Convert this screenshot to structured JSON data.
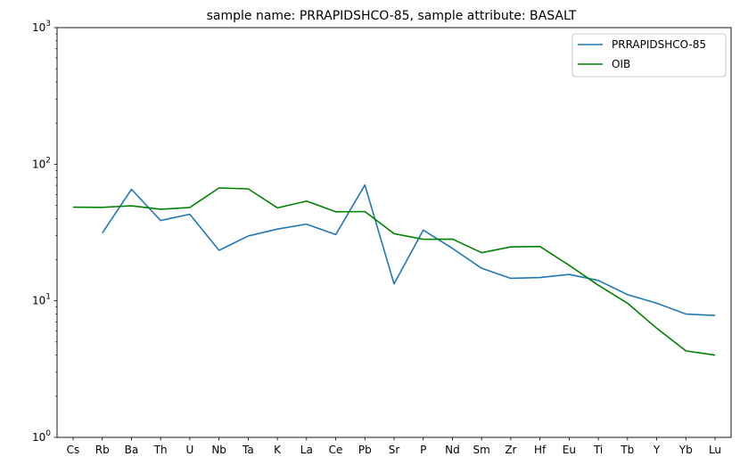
{
  "chart_data": {
    "type": "line",
    "title": "sample name: PRRAPIDSHCO-85, sample attribute: BASALT",
    "xlabel": "",
    "ylabel": "",
    "yscale": "log",
    "ylim": [
      1,
      1000
    ],
    "yticks": [
      {
        "value": 1,
        "base": "10",
        "exp": "0"
      },
      {
        "value": 10,
        "base": "10",
        "exp": "1"
      },
      {
        "value": 100,
        "base": "10",
        "exp": "2"
      },
      {
        "value": 1000,
        "base": "10",
        "exp": "3"
      }
    ],
    "categories": [
      "Cs",
      "Rb",
      "Ba",
      "Th",
      "U",
      "Nb",
      "Ta",
      "K",
      "La",
      "Ce",
      "Pb",
      "Sr",
      "P",
      "Nd",
      "Sm",
      "Zr",
      "Hf",
      "Eu",
      "Ti",
      "Tb",
      "Y",
      "Yb",
      "Lu"
    ],
    "grid": false,
    "legend_position": "top-right",
    "series": [
      {
        "name": "PRRAPIDSHCO-85",
        "color": "#1f77b4",
        "values": [
          null,
          31.3,
          65.5,
          38.7,
          43.0,
          23.4,
          29.8,
          33.5,
          36.4,
          30.5,
          70.4,
          13.3,
          32.9,
          24.2,
          17.3,
          14.6,
          14.8,
          15.6,
          14.1,
          11.1,
          9.6,
          8.0,
          7.8
        ]
      },
      {
        "name": "OIB",
        "color": "#008000",
        "values": [
          48.5,
          48.3,
          49.6,
          46.8,
          48.2,
          67.0,
          66.0,
          47.9,
          53.7,
          44.8,
          45.0,
          31.0,
          28.2,
          28.3,
          22.5,
          24.8,
          25.0,
          18.2,
          13.0,
          9.6,
          6.3,
          4.3,
          4.0
        ]
      }
    ]
  }
}
